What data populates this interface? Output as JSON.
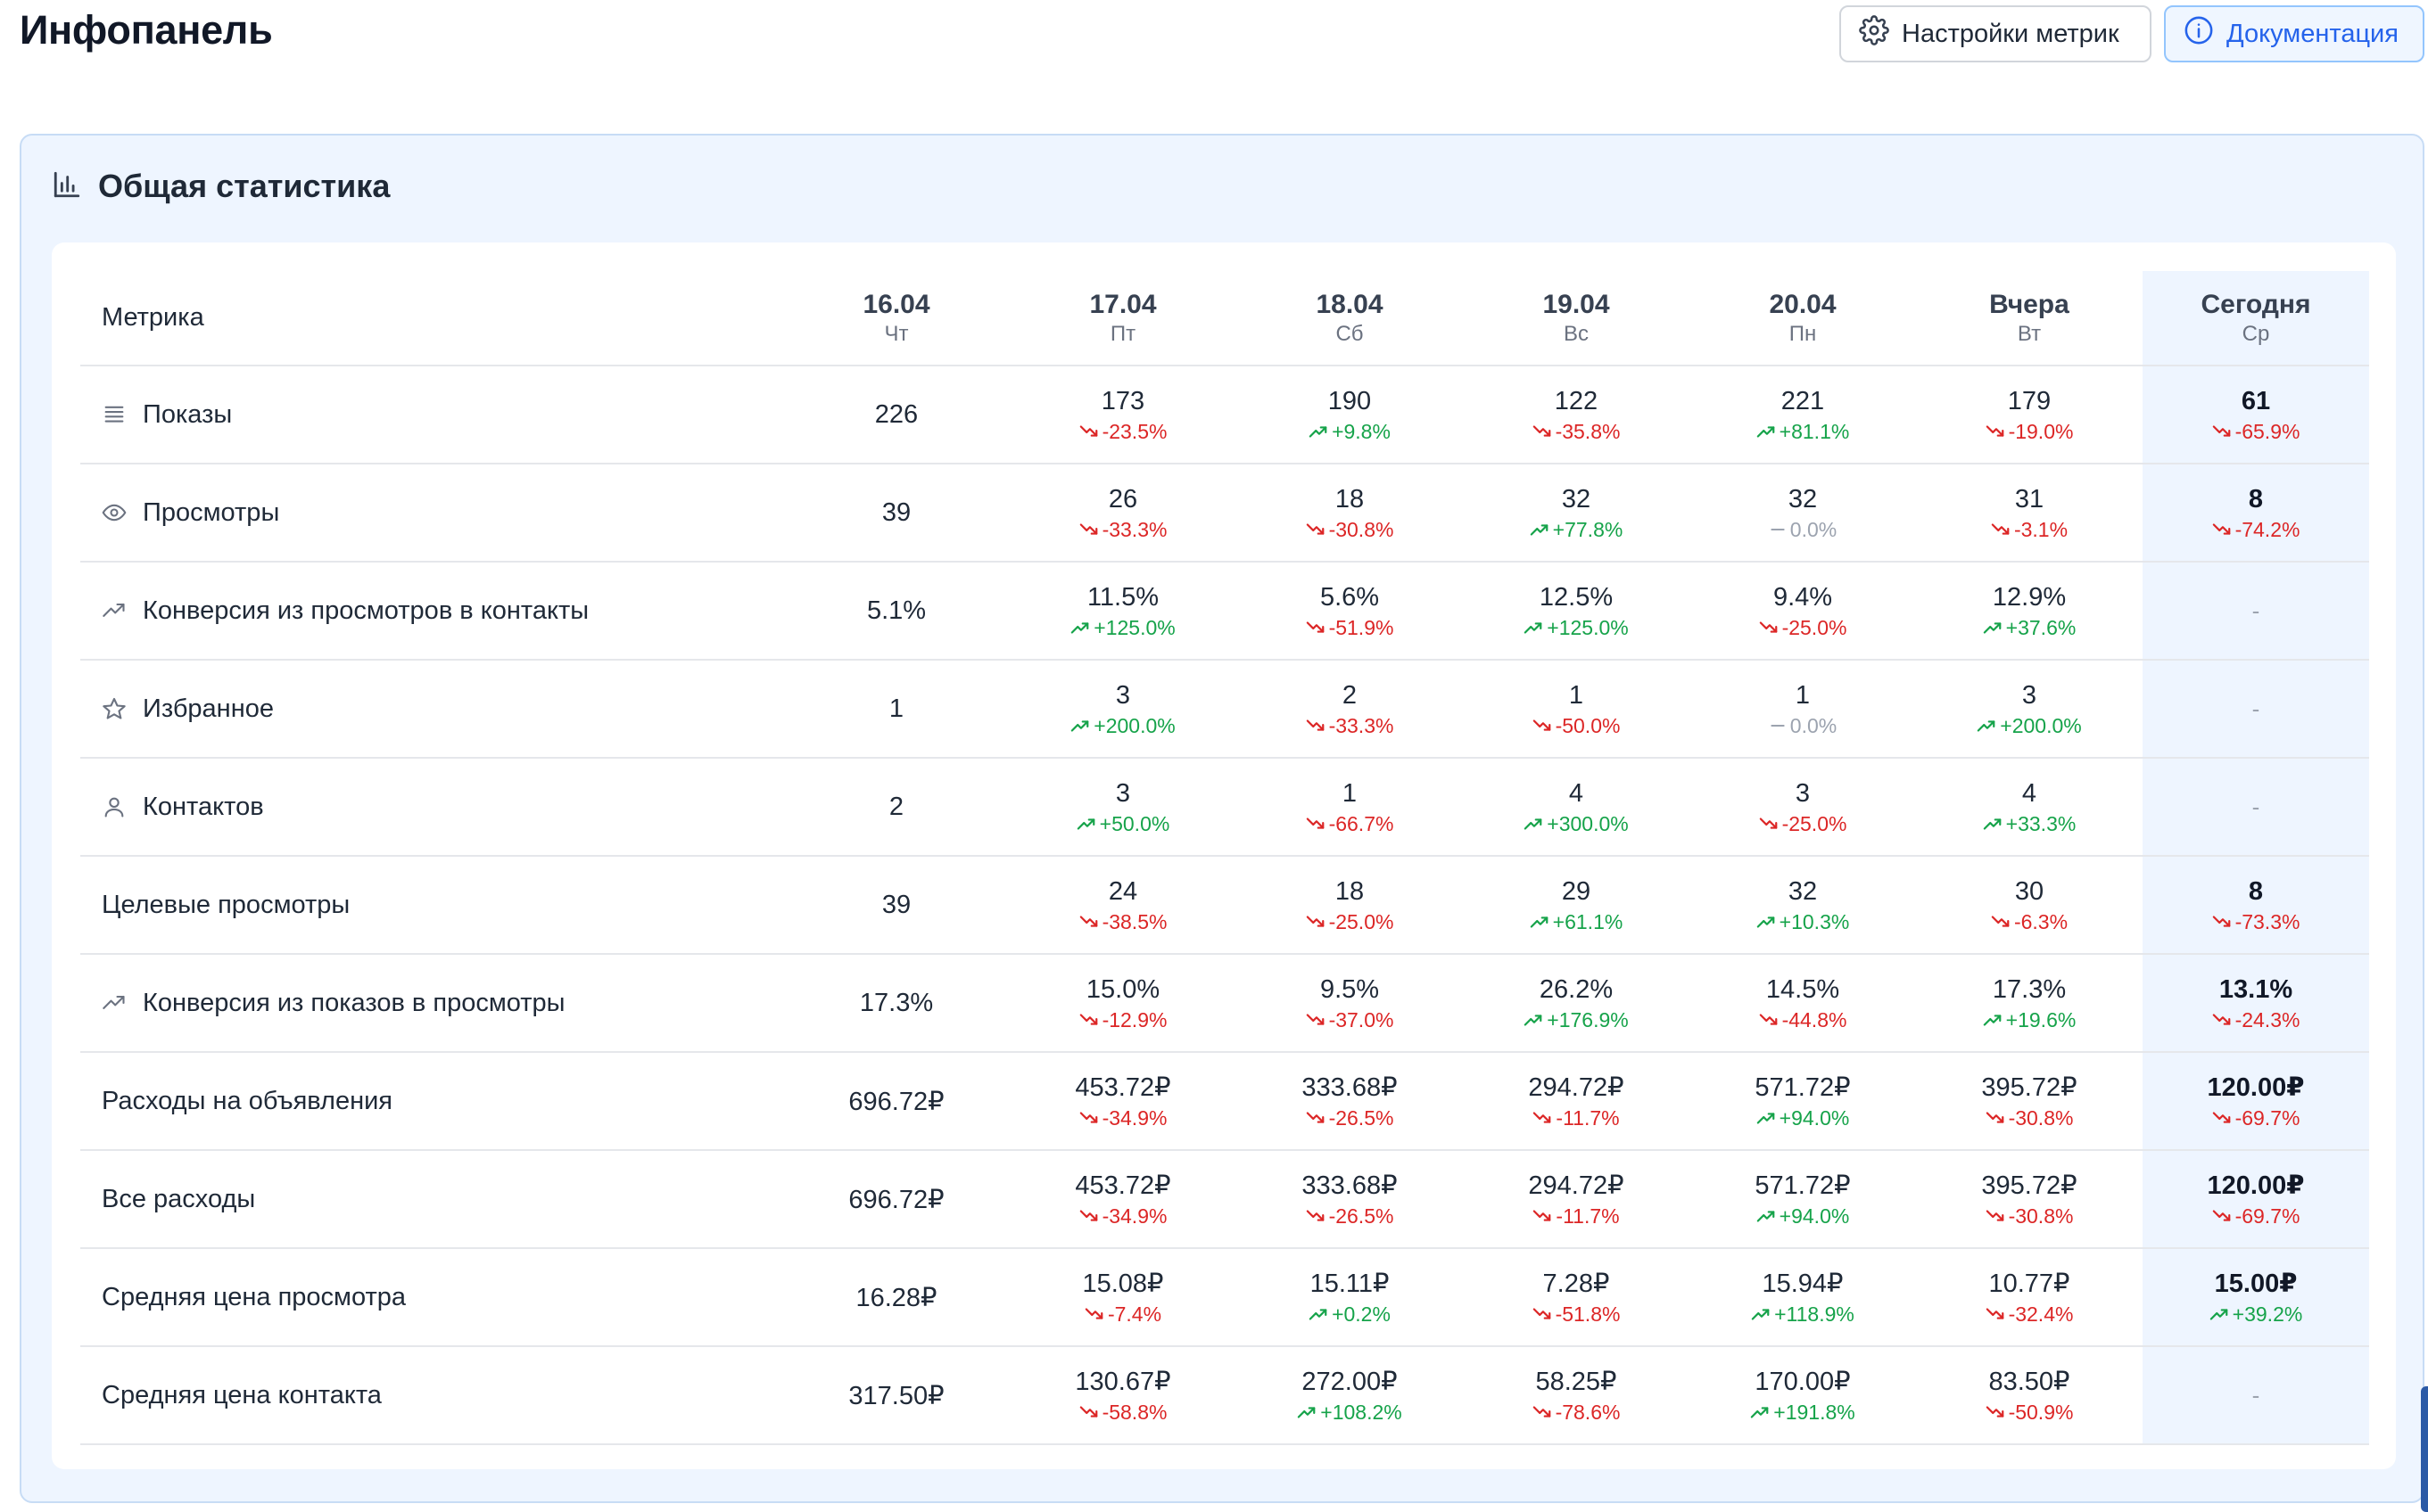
{
  "page": {
    "title": "Инфопанель",
    "settings_label": "Настройки метрик",
    "docs_label": "Документация"
  },
  "card": {
    "title": "Общая статистика"
  },
  "colors": {
    "up": "#16a34a",
    "down": "#dc2626",
    "flat": "#9ca3af",
    "accent": "#2563eb",
    "card_bg": "#eef5ff"
  },
  "table": {
    "metric_header": "Метрика",
    "days": [
      {
        "date": "16.04",
        "dow": "Чт"
      },
      {
        "date": "17.04",
        "dow": "Пт"
      },
      {
        "date": "18.04",
        "dow": "Сб"
      },
      {
        "date": "19.04",
        "dow": "Вс"
      },
      {
        "date": "20.04",
        "dow": "Пн"
      },
      {
        "date": "Вчера",
        "dow": "Вт"
      },
      {
        "date": "Сегодня",
        "dow": "Ср",
        "today": true
      }
    ],
    "rows": [
      {
        "label": "Показы",
        "icon": "list-icon",
        "base": "226",
        "cells": [
          {
            "v": "173",
            "d": "-23.5%",
            "t": "down"
          },
          {
            "v": "190",
            "d": "+9.8%",
            "t": "up"
          },
          {
            "v": "122",
            "d": "-35.8%",
            "t": "down"
          },
          {
            "v": "221",
            "d": "+81.1%",
            "t": "up"
          },
          {
            "v": "179",
            "d": "-19.0%",
            "t": "down"
          },
          {
            "v": "61",
            "d": "-65.9%",
            "t": "down"
          }
        ]
      },
      {
        "label": "Просмотры",
        "icon": "eye-icon",
        "base": "39",
        "cells": [
          {
            "v": "26",
            "d": "-33.3%",
            "t": "down"
          },
          {
            "v": "18",
            "d": "-30.8%",
            "t": "down"
          },
          {
            "v": "32",
            "d": "+77.8%",
            "t": "up"
          },
          {
            "v": "32",
            "d": "0.0%",
            "t": "flat"
          },
          {
            "v": "31",
            "d": "-3.1%",
            "t": "down"
          },
          {
            "v": "8",
            "d": "-74.2%",
            "t": "down"
          }
        ]
      },
      {
        "label": "Конверсия из просмотров в контакты",
        "icon": "trend-up-icon",
        "base": "5.1%",
        "cells": [
          {
            "v": "11.5%",
            "d": "+125.0%",
            "t": "up"
          },
          {
            "v": "5.6%",
            "d": "-51.9%",
            "t": "down"
          },
          {
            "v": "12.5%",
            "d": "+125.0%",
            "t": "up"
          },
          {
            "v": "9.4%",
            "d": "-25.0%",
            "t": "down"
          },
          {
            "v": "12.9%",
            "d": "+37.6%",
            "t": "up"
          },
          {
            "dash": "-"
          }
        ]
      },
      {
        "label": "Избранное",
        "icon": "star-icon",
        "base": "1",
        "cells": [
          {
            "v": "3",
            "d": "+200.0%",
            "t": "up"
          },
          {
            "v": "2",
            "d": "-33.3%",
            "t": "down"
          },
          {
            "v": "1",
            "d": "-50.0%",
            "t": "down"
          },
          {
            "v": "1",
            "d": "0.0%",
            "t": "flat"
          },
          {
            "v": "3",
            "d": "+200.0%",
            "t": "up"
          },
          {
            "dash": "-"
          }
        ]
      },
      {
        "label": "Контактов",
        "icon": "user-icon",
        "base": "2",
        "cells": [
          {
            "v": "3",
            "d": "+50.0%",
            "t": "up"
          },
          {
            "v": "1",
            "d": "-66.7%",
            "t": "down"
          },
          {
            "v": "4",
            "d": "+300.0%",
            "t": "up"
          },
          {
            "v": "3",
            "d": "-25.0%",
            "t": "down"
          },
          {
            "v": "4",
            "d": "+33.3%",
            "t": "up"
          },
          {
            "dash": "-"
          }
        ]
      },
      {
        "label": "Целевые просмотры",
        "icon": "",
        "base": "39",
        "cells": [
          {
            "v": "24",
            "d": "-38.5%",
            "t": "down"
          },
          {
            "v": "18",
            "d": "-25.0%",
            "t": "down"
          },
          {
            "v": "29",
            "d": "+61.1%",
            "t": "up"
          },
          {
            "v": "32",
            "d": "+10.3%",
            "t": "up"
          },
          {
            "v": "30",
            "d": "-6.3%",
            "t": "down"
          },
          {
            "v": "8",
            "d": "-73.3%",
            "t": "down"
          }
        ]
      },
      {
        "label": "Конверсия из показов в просмотры",
        "icon": "trend-up-icon",
        "base": "17.3%",
        "cells": [
          {
            "v": "15.0%",
            "d": "-12.9%",
            "t": "down"
          },
          {
            "v": "9.5%",
            "d": "-37.0%",
            "t": "down"
          },
          {
            "v": "26.2%",
            "d": "+176.9%",
            "t": "up"
          },
          {
            "v": "14.5%",
            "d": "-44.8%",
            "t": "down"
          },
          {
            "v": "17.3%",
            "d": "+19.6%",
            "t": "up"
          },
          {
            "v": "13.1%",
            "d": "-24.3%",
            "t": "down"
          }
        ]
      },
      {
        "label": "Расходы на объявления",
        "icon": "",
        "base": "696.72₽",
        "cells": [
          {
            "v": "453.72₽",
            "d": "-34.9%",
            "t": "down"
          },
          {
            "v": "333.68₽",
            "d": "-26.5%",
            "t": "down"
          },
          {
            "v": "294.72₽",
            "d": "-11.7%",
            "t": "down"
          },
          {
            "v": "571.72₽",
            "d": "+94.0%",
            "t": "up"
          },
          {
            "v": "395.72₽",
            "d": "-30.8%",
            "t": "down"
          },
          {
            "v": "120.00₽",
            "d": "-69.7%",
            "t": "down"
          }
        ]
      },
      {
        "label": "Все расходы",
        "icon": "",
        "base": "696.72₽",
        "cells": [
          {
            "v": "453.72₽",
            "d": "-34.9%",
            "t": "down"
          },
          {
            "v": "333.68₽",
            "d": "-26.5%",
            "t": "down"
          },
          {
            "v": "294.72₽",
            "d": "-11.7%",
            "t": "down"
          },
          {
            "v": "571.72₽",
            "d": "+94.0%",
            "t": "up"
          },
          {
            "v": "395.72₽",
            "d": "-30.8%",
            "t": "down"
          },
          {
            "v": "120.00₽",
            "d": "-69.7%",
            "t": "down"
          }
        ]
      },
      {
        "label": "Средняя цена просмотра",
        "icon": "",
        "base": "16.28₽",
        "cells": [
          {
            "v": "15.08₽",
            "d": "-7.4%",
            "t": "down"
          },
          {
            "v": "15.11₽",
            "d": "+0.2%",
            "t": "up"
          },
          {
            "v": "7.28₽",
            "d": "-51.8%",
            "t": "down"
          },
          {
            "v": "15.94₽",
            "d": "+118.9%",
            "t": "up"
          },
          {
            "v": "10.77₽",
            "d": "-32.4%",
            "t": "down"
          },
          {
            "v": "15.00₽",
            "d": "+39.2%",
            "t": "up"
          }
        ]
      },
      {
        "label": "Средняя цена контакта",
        "icon": "",
        "base": "317.50₽",
        "cells": [
          {
            "v": "130.67₽",
            "d": "-58.8%",
            "t": "down"
          },
          {
            "v": "272.00₽",
            "d": "+108.2%",
            "t": "up"
          },
          {
            "v": "58.25₽",
            "d": "-78.6%",
            "t": "down"
          },
          {
            "v": "170.00₽",
            "d": "+191.8%",
            "t": "up"
          },
          {
            "v": "83.50₽",
            "d": "-50.9%",
            "t": "down"
          },
          {
            "dash": "-"
          }
        ]
      }
    ]
  }
}
